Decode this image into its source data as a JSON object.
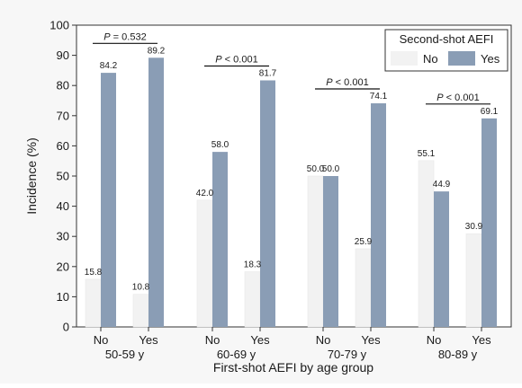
{
  "chart_data": {
    "type": "bar",
    "ylabel": "Incidence (%)",
    "xlabel": "First-shot AEFI by age group",
    "ylim": [
      0,
      100
    ],
    "yticks": [
      0,
      10,
      20,
      30,
      40,
      50,
      60,
      70,
      80,
      90,
      100
    ],
    "legend": {
      "title": "Second-shot AEFI",
      "placement": "top-right"
    },
    "series": [
      {
        "name": "No",
        "color": "#f2f2f2"
      },
      {
        "name": "Yes",
        "color": "#8a9db5"
      }
    ],
    "groups": [
      {
        "label": "50-59 y",
        "p_value": "P = 0.532",
        "categories": [
          {
            "label": "No",
            "values": [
              15.8,
              84.2
            ],
            "value_labels": [
              "15.8",
              "84.2"
            ]
          },
          {
            "label": "Yes",
            "values": [
              10.8,
              89.2
            ],
            "value_labels": [
              "10.8",
              "89.2"
            ]
          }
        ]
      },
      {
        "label": "60-69 y",
        "p_value": "P < 0.001",
        "categories": [
          {
            "label": "No",
            "values": [
              42.0,
              58.0
            ],
            "value_labels": [
              "42.0",
              "58.0"
            ]
          },
          {
            "label": "Yes",
            "values": [
              18.3,
              81.7
            ],
            "value_labels": [
              "18.3",
              "81.7"
            ]
          }
        ]
      },
      {
        "label": "70-79 y",
        "p_value": "P < 0.001",
        "categories": [
          {
            "label": "No",
            "values": [
              50.0,
              50.0
            ],
            "value_labels": [
              "50.0",
              "50.0"
            ]
          },
          {
            "label": "Yes",
            "values": [
              25.9,
              74.1
            ],
            "value_labels": [
              "25.9",
              "74.1"
            ]
          }
        ]
      },
      {
        "label": "80-89 y",
        "p_value": "P < 0.001",
        "categories": [
          {
            "label": "No",
            "values": [
              55.1,
              44.9
            ],
            "value_labels": [
              "55.1",
              "44.9"
            ]
          },
          {
            "label": "Yes",
            "values": [
              30.9,
              69.1
            ],
            "value_labels": [
              "30.9",
              "69.1"
            ]
          }
        ]
      }
    ]
  }
}
